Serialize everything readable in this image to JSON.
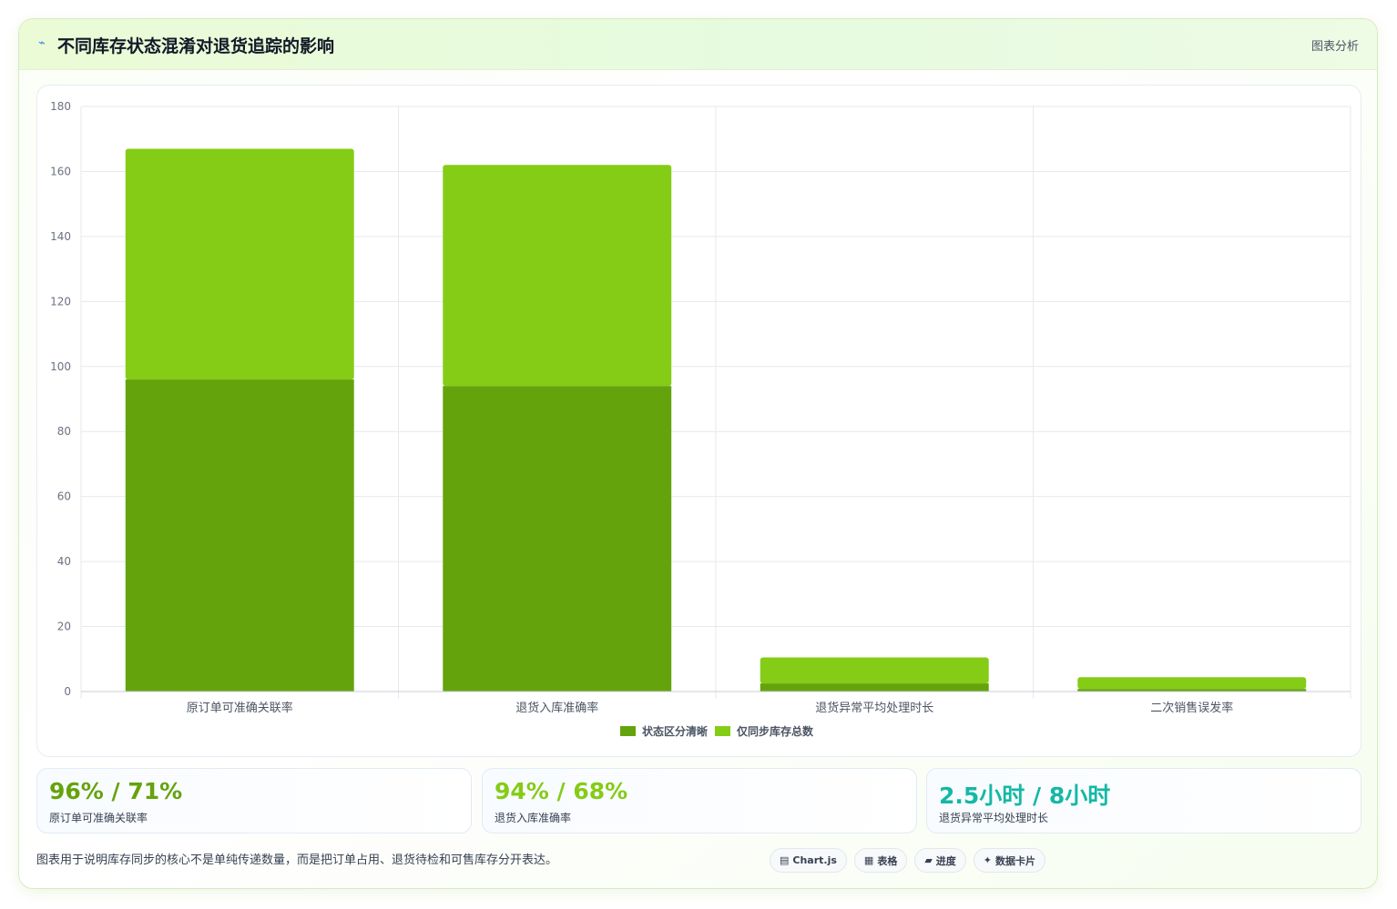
{
  "header": {
    "icon": "⌁",
    "title": "不同库存状态混淆对退货追踪的影响",
    "badge": "图表分析"
  },
  "chart_data": {
    "type": "bar",
    "stacked": true,
    "categories": [
      "原订单可准确关联率",
      "退货入库准确率",
      "退货异常平均处理时长",
      "二次销售误发率"
    ],
    "series": [
      {
        "name": "状态区分清晰",
        "color": "#65a30d",
        "values": [
          96,
          94,
          2.5,
          0.8
        ]
      },
      {
        "name": "仅同步库存总数",
        "color": "#84cc16",
        "values": [
          71,
          68,
          8,
          3.6
        ]
      }
    ],
    "yticks": [
      0,
      20,
      40,
      60,
      80,
      100,
      120,
      140,
      160,
      180
    ],
    "ylim": [
      0,
      180
    ],
    "grid": true,
    "legend": "bottom"
  },
  "stats": [
    {
      "value": "96% / 71%",
      "label": "原订单可准确关联率",
      "color": "#65a30d"
    },
    {
      "value": "94% / 68%",
      "label": "退货入库准确率",
      "color": "#84cc16"
    },
    {
      "value": "2.5小时 / 8小时",
      "label": "退货异常平均处理时长",
      "color": "#14b8a6"
    }
  ],
  "footer": {
    "note": "图表用于说明库存同步的核心不是单纯传递数量，而是把订单占用、退货待检和可售库存分开表达。",
    "tags": [
      {
        "icon": "▤",
        "label": "Chart.js"
      },
      {
        "icon": "▦",
        "label": "表格"
      },
      {
        "icon": "▰",
        "label": "进度"
      },
      {
        "icon": "✦",
        "label": "数据卡片"
      }
    ]
  }
}
